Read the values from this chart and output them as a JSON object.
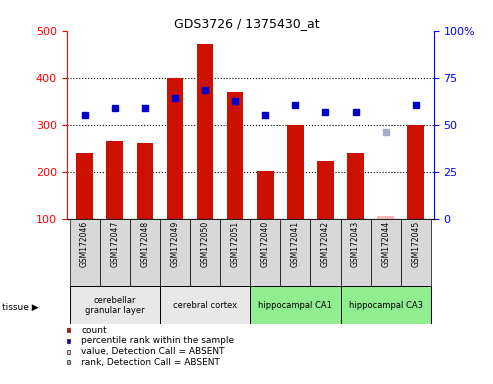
{
  "title": "GDS3726 / 1375430_at",
  "samples": [
    "GSM172046",
    "GSM172047",
    "GSM172048",
    "GSM172049",
    "GSM172050",
    "GSM172051",
    "GSM172040",
    "GSM172041",
    "GSM172042",
    "GSM172043",
    "GSM172044",
    "GSM172045"
  ],
  "count_values": [
    240,
    265,
    262,
    400,
    472,
    370,
    202,
    300,
    222,
    240,
    null,
    300
  ],
  "count_absent": [
    null,
    null,
    null,
    null,
    null,
    null,
    null,
    null,
    null,
    null,
    107,
    null
  ],
  "rank_values": [
    320,
    335,
    335,
    358,
    375,
    350,
    320,
    343,
    328,
    328,
    null,
    342
  ],
  "rank_absent": [
    null,
    null,
    null,
    null,
    null,
    null,
    null,
    null,
    null,
    null,
    285,
    null
  ],
  "tissue_groups": [
    {
      "label": "cerebellar\ngranular layer",
      "start": 0,
      "end": 3,
      "color": "#e8e8e8"
    },
    {
      "label": "cerebral cortex",
      "start": 3,
      "end": 6,
      "color": "#e8e8e8"
    },
    {
      "label": "hippocampal CA1",
      "start": 6,
      "end": 9,
      "color": "#90ee90"
    },
    {
      "label": "hippocampal CA3",
      "start": 9,
      "end": 12,
      "color": "#90ee90"
    }
  ],
  "ylim_left": [
    100,
    500
  ],
  "ylim_right": [
    0,
    100
  ],
  "yticks_left": [
    100,
    200,
    300,
    400,
    500
  ],
  "yticks_right": [
    0,
    25,
    50,
    75,
    100
  ],
  "bar_color": "#cc1100",
  "absent_bar_color": "#ffb6b6",
  "rank_color": "#0000cc",
  "rank_absent_color": "#aaaacc",
  "background_color": "#ffffff",
  "legend_items": [
    {
      "label": "count",
      "color": "#cc1100"
    },
    {
      "label": "percentile rank within the sample",
      "color": "#0000cc"
    },
    {
      "label": "value, Detection Call = ABSENT",
      "color": "#ffb6b6"
    },
    {
      "label": "rank, Detection Call = ABSENT",
      "color": "#aaaacc"
    }
  ]
}
